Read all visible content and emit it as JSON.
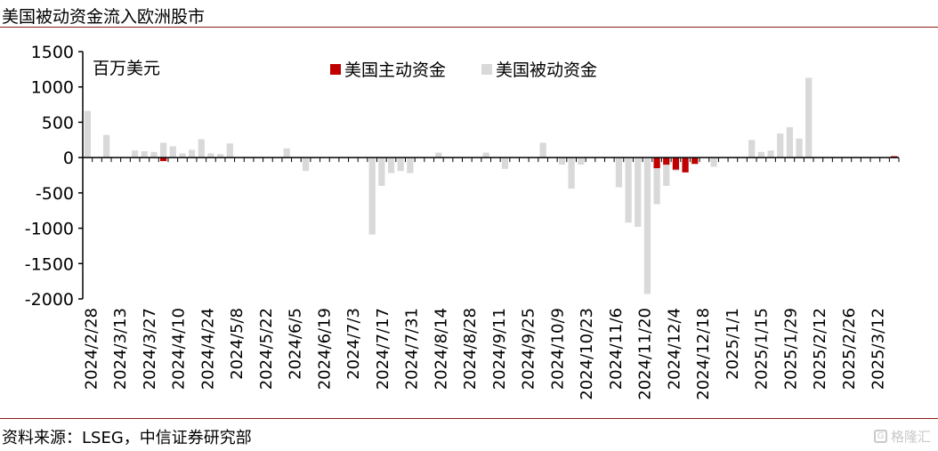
{
  "title": "美国被动资金流入欧洲股市",
  "source": "资料来源：LSEG，中信证券研究部",
  "watermark": "格隆汇",
  "watermark_icon": "logo-g-icon",
  "chart_data": {
    "type": "bar",
    "unit_label": "百万美元",
    "ylim": [
      -2000,
      1500
    ],
    "yticks": [
      1500,
      1000,
      500,
      0,
      -500,
      -1000,
      -1500,
      -2000
    ],
    "legend_position": "top-center",
    "x_tick_labels": [
      "2024/2/28",
      "2024/3/13",
      "2024/3/27",
      "2024/4/10",
      "2024/4/24",
      "2024/5/8",
      "2024/5/22",
      "2024/6/5",
      "2024/6/19",
      "2024/7/3",
      "2024/7/17",
      "2024/7/31",
      "2024/8/14",
      "2024/8/28",
      "2024/9/11",
      "2024/9/25",
      "2024/10/9",
      "2024/10/23",
      "2024/11/6",
      "2024/11/20",
      "2024/12/4",
      "2024/12/18",
      "2025/1/1",
      "2025/1/15",
      "2025/1/29",
      "2025/2/12",
      "2025/2/26",
      "2025/3/12"
    ],
    "series": [
      {
        "name": "美国主动资金",
        "color": "#c00000",
        "values": [
          0,
          0,
          0,
          0,
          0,
          0,
          0,
          0,
          -50,
          0,
          0,
          0,
          0,
          0,
          0,
          0,
          0,
          0,
          0,
          0,
          0,
          0,
          0,
          0,
          0,
          0,
          0,
          0,
          0,
          0,
          0,
          0,
          0,
          0,
          0,
          0,
          0,
          0,
          0,
          0,
          0,
          0,
          0,
          0,
          0,
          0,
          0,
          0,
          0,
          0,
          0,
          0,
          0,
          0,
          0,
          0,
          0,
          0,
          0,
          0,
          -150,
          -100,
          -170,
          -210,
          -90,
          0,
          0,
          0,
          0,
          0,
          0,
          0,
          0,
          0,
          0,
          0,
          0,
          0,
          0,
          0,
          0,
          0,
          0,
          0,
          0,
          20
        ]
      },
      {
        "name": "美国被动资金",
        "color": "#d9d9d9",
        "values": [
          660,
          0,
          320,
          0,
          0,
          100,
          90,
          80,
          210,
          160,
          60,
          110,
          260,
          60,
          50,
          200,
          0,
          0,
          0,
          0,
          0,
          130,
          0,
          -190,
          0,
          0,
          0,
          0,
          0,
          0,
          -1090,
          -400,
          -220,
          -190,
          -220,
          0,
          0,
          70,
          0,
          0,
          0,
          0,
          70,
          0,
          -160,
          0,
          0,
          0,
          210,
          0,
          -100,
          -440,
          -100,
          0,
          0,
          0,
          -420,
          -920,
          -980,
          -1930,
          -660,
          -400,
          -190,
          0,
          0,
          0,
          -130,
          0,
          0,
          0,
          250,
          80,
          100,
          340,
          430,
          270,
          1130,
          0,
          0,
          0,
          0,
          0,
          0,
          0,
          0,
          0
        ]
      }
    ]
  }
}
